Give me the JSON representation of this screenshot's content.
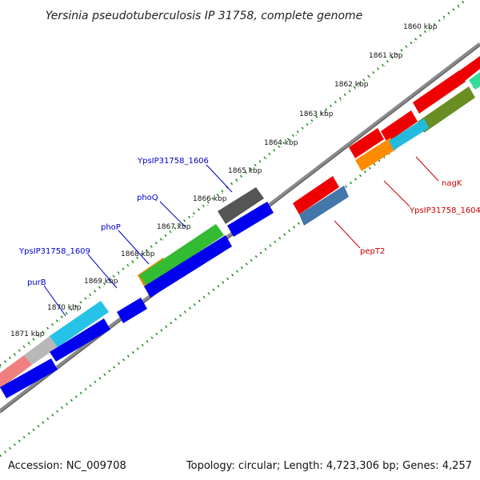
{
  "title": "Yersinia pseudotuberculosis IP 31758, complete genome",
  "footer": {
    "accession": "Accession: NC_009708",
    "summary": "Topology: circular; Length: 4,723,306 bp; Genes: 4,257"
  },
  "kbp_labels": [
    "1860 kbp",
    "1861 kbp",
    "1862 kbp",
    "1863 kbp",
    "1864 kbp",
    "1865 kbp",
    "1866 kbp",
    "1867 kbp",
    "1868 kbp",
    "1869 kbp",
    "1870 kbp",
    "1871 kbp"
  ],
  "gene_labels": [
    {
      "text": "YpsIP31758_1606",
      "color": "#0000cc"
    },
    {
      "text": "phoQ",
      "color": "#0000cc"
    },
    {
      "text": "phoP",
      "color": "#0000cc"
    },
    {
      "text": "YpsIP31758_1609",
      "color": "#0000cc"
    },
    {
      "text": "purB",
      "color": "#0000cc"
    },
    {
      "text": "nagK",
      "color": "#cc0000"
    },
    {
      "text": "YpsIP31758_1604",
      "color": "#cc0000"
    },
    {
      "text": "pepT2",
      "color": "#cc0000"
    }
  ],
  "colors": {
    "backbone": "#8a8a8a",
    "tick": "#1a8a1a",
    "forward_gene": "#0000ee",
    "reverse_gene": "#ee0000"
  }
}
